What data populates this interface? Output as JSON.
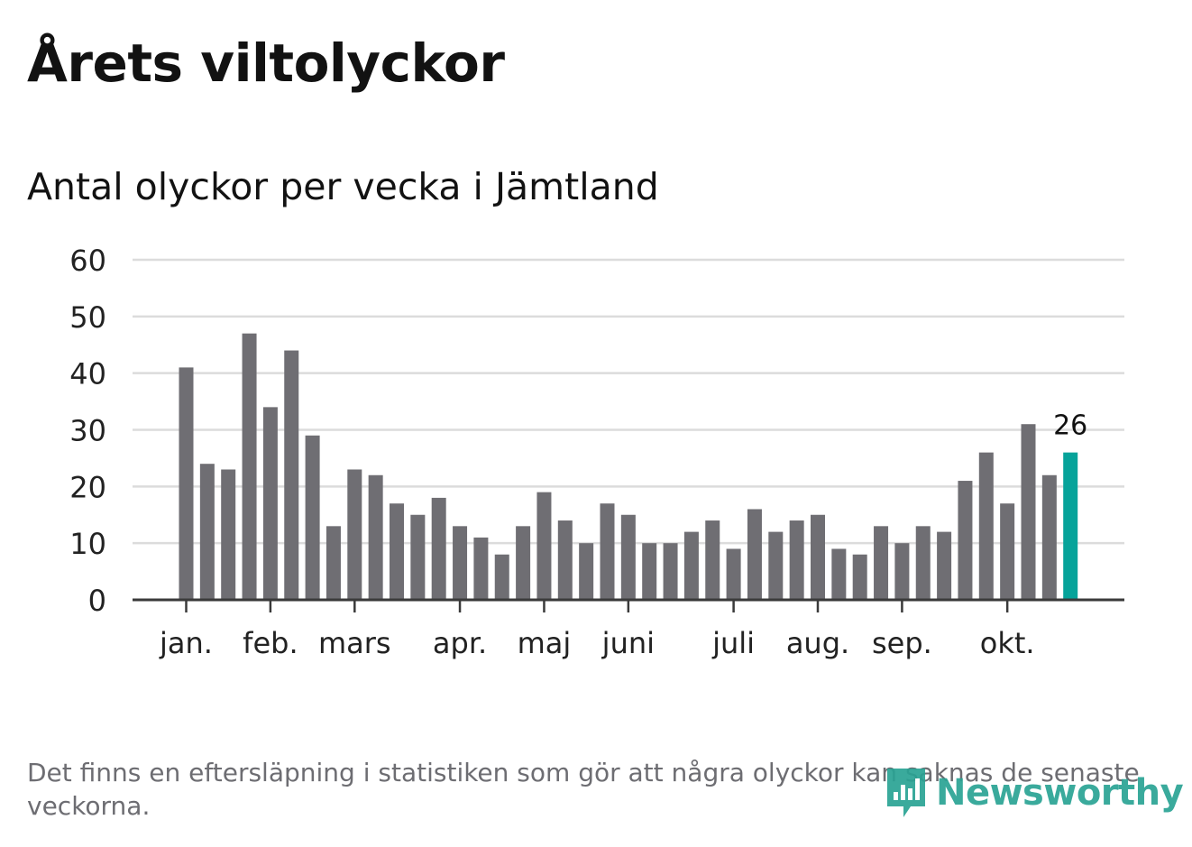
{
  "title": "Årets viltolyckor",
  "subtitle": "Antal olyckor per vecka i Jämtland",
  "footnote": "Det finns en eftersläpning i statistiken som gör att några olyckor kan saknas de senaste veckorna.",
  "brand": {
    "name": "Newsworthy",
    "icon": "newsworthy-chart-logo-icon",
    "color": "#2aa394"
  },
  "colors": {
    "bar": "#6f6e73",
    "highlight": "#06a39a",
    "grid": "#dcdcdc",
    "axis": "#3a3a3a",
    "text": "#222222"
  },
  "chart_data": {
    "type": "bar",
    "title": "Årets viltolyckor",
    "subtitle": "Antal olyckor per vecka i Jämtland",
    "xlabel": "",
    "ylabel": "",
    "ylim": [
      0,
      60
    ],
    "yticks": [
      0,
      10,
      20,
      30,
      40,
      50,
      60
    ],
    "grid": true,
    "values": [
      41,
      24,
      23,
      47,
      34,
      44,
      29,
      13,
      23,
      22,
      17,
      15,
      18,
      13,
      11,
      8,
      13,
      19,
      14,
      10,
      17,
      15,
      10,
      10,
      12,
      14,
      9,
      16,
      12,
      14,
      15,
      9,
      8,
      13,
      10,
      13,
      12,
      21,
      26,
      17,
      31,
      22,
      26
    ],
    "highlight_index": 42,
    "highlight_label": "26",
    "month_labels": [
      {
        "label": "jan.",
        "bar_index": 0
      },
      {
        "label": "feb.",
        "bar_index": 4
      },
      {
        "label": "mars",
        "bar_index": 8
      },
      {
        "label": "apr.",
        "bar_index": 13
      },
      {
        "label": "maj",
        "bar_index": 17
      },
      {
        "label": "juni",
        "bar_index": 21
      },
      {
        "label": "juli",
        "bar_index": 26
      },
      {
        "label": "aug.",
        "bar_index": 30
      },
      {
        "label": "sep.",
        "bar_index": 34
      },
      {
        "label": "okt.",
        "bar_index": 39
      }
    ]
  }
}
